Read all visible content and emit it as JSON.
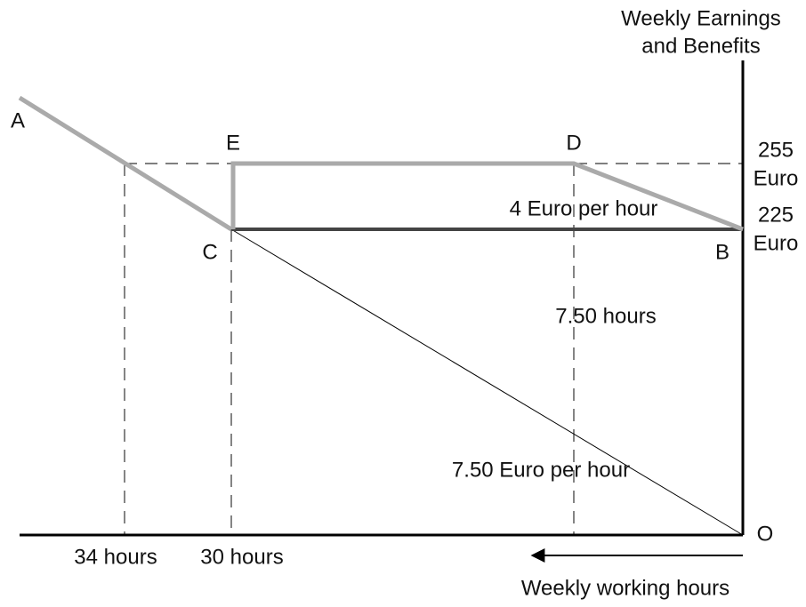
{
  "title": {
    "line1": "Weekly Earnings",
    "line2": "and Benefits"
  },
  "x_axis_label": "Weekly working hours",
  "points": {
    "A": "A",
    "B": "B",
    "C": "C",
    "D": "D",
    "E": "E",
    "O": "O"
  },
  "y_labels": [
    {
      "value": "255",
      "unit": "Euro"
    },
    {
      "value": "225",
      "unit": "Euro"
    }
  ],
  "x_labels": [
    "34 hours",
    "30 hours"
  ],
  "annotations": [
    "4 Euro per hour",
    "7.50 hours",
    "7.50 Euro per hour"
  ]
}
